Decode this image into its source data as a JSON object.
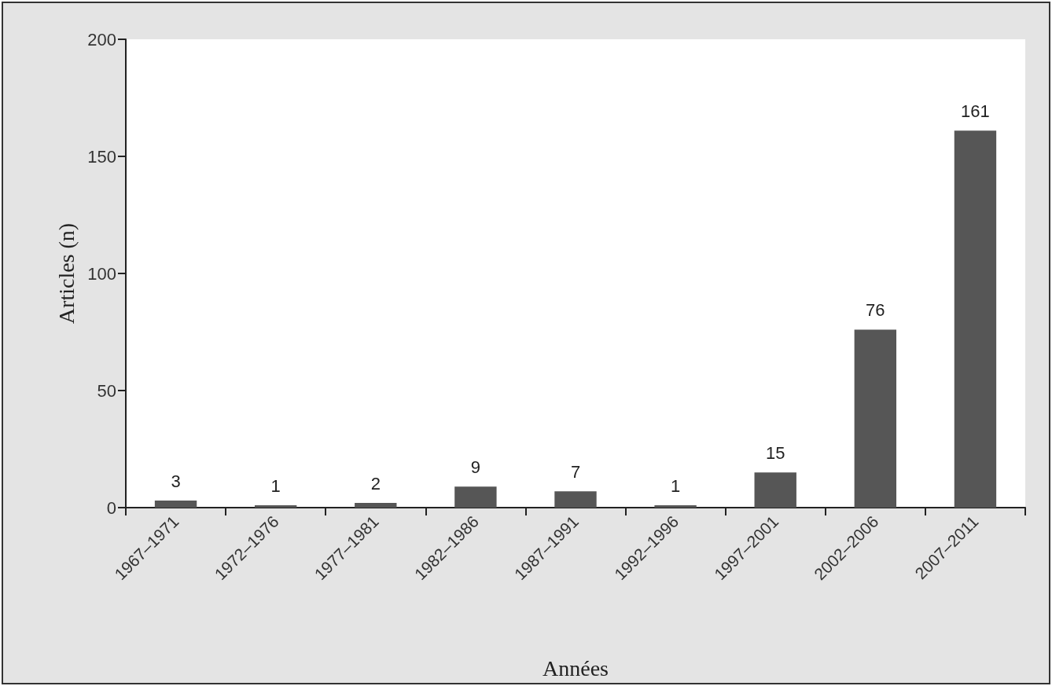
{
  "chart_data": {
    "type": "bar",
    "xlabel": "Années",
    "ylabel": "Articles (n)",
    "categories": [
      "1967–1971",
      "1972–1976",
      "1977–1981",
      "1982–1986",
      "1987–1991",
      "1992–1996",
      "1997–2001",
      "2002–2006",
      "2007–2011"
    ],
    "values": [
      3,
      1,
      2,
      9,
      7,
      1,
      15,
      76,
      161
    ],
    "color": "#565656",
    "ylim": [
      0,
      200
    ],
    "yticks": [
      0,
      50,
      100,
      150,
      200
    ],
    "grid": false,
    "data_labels": true
  }
}
